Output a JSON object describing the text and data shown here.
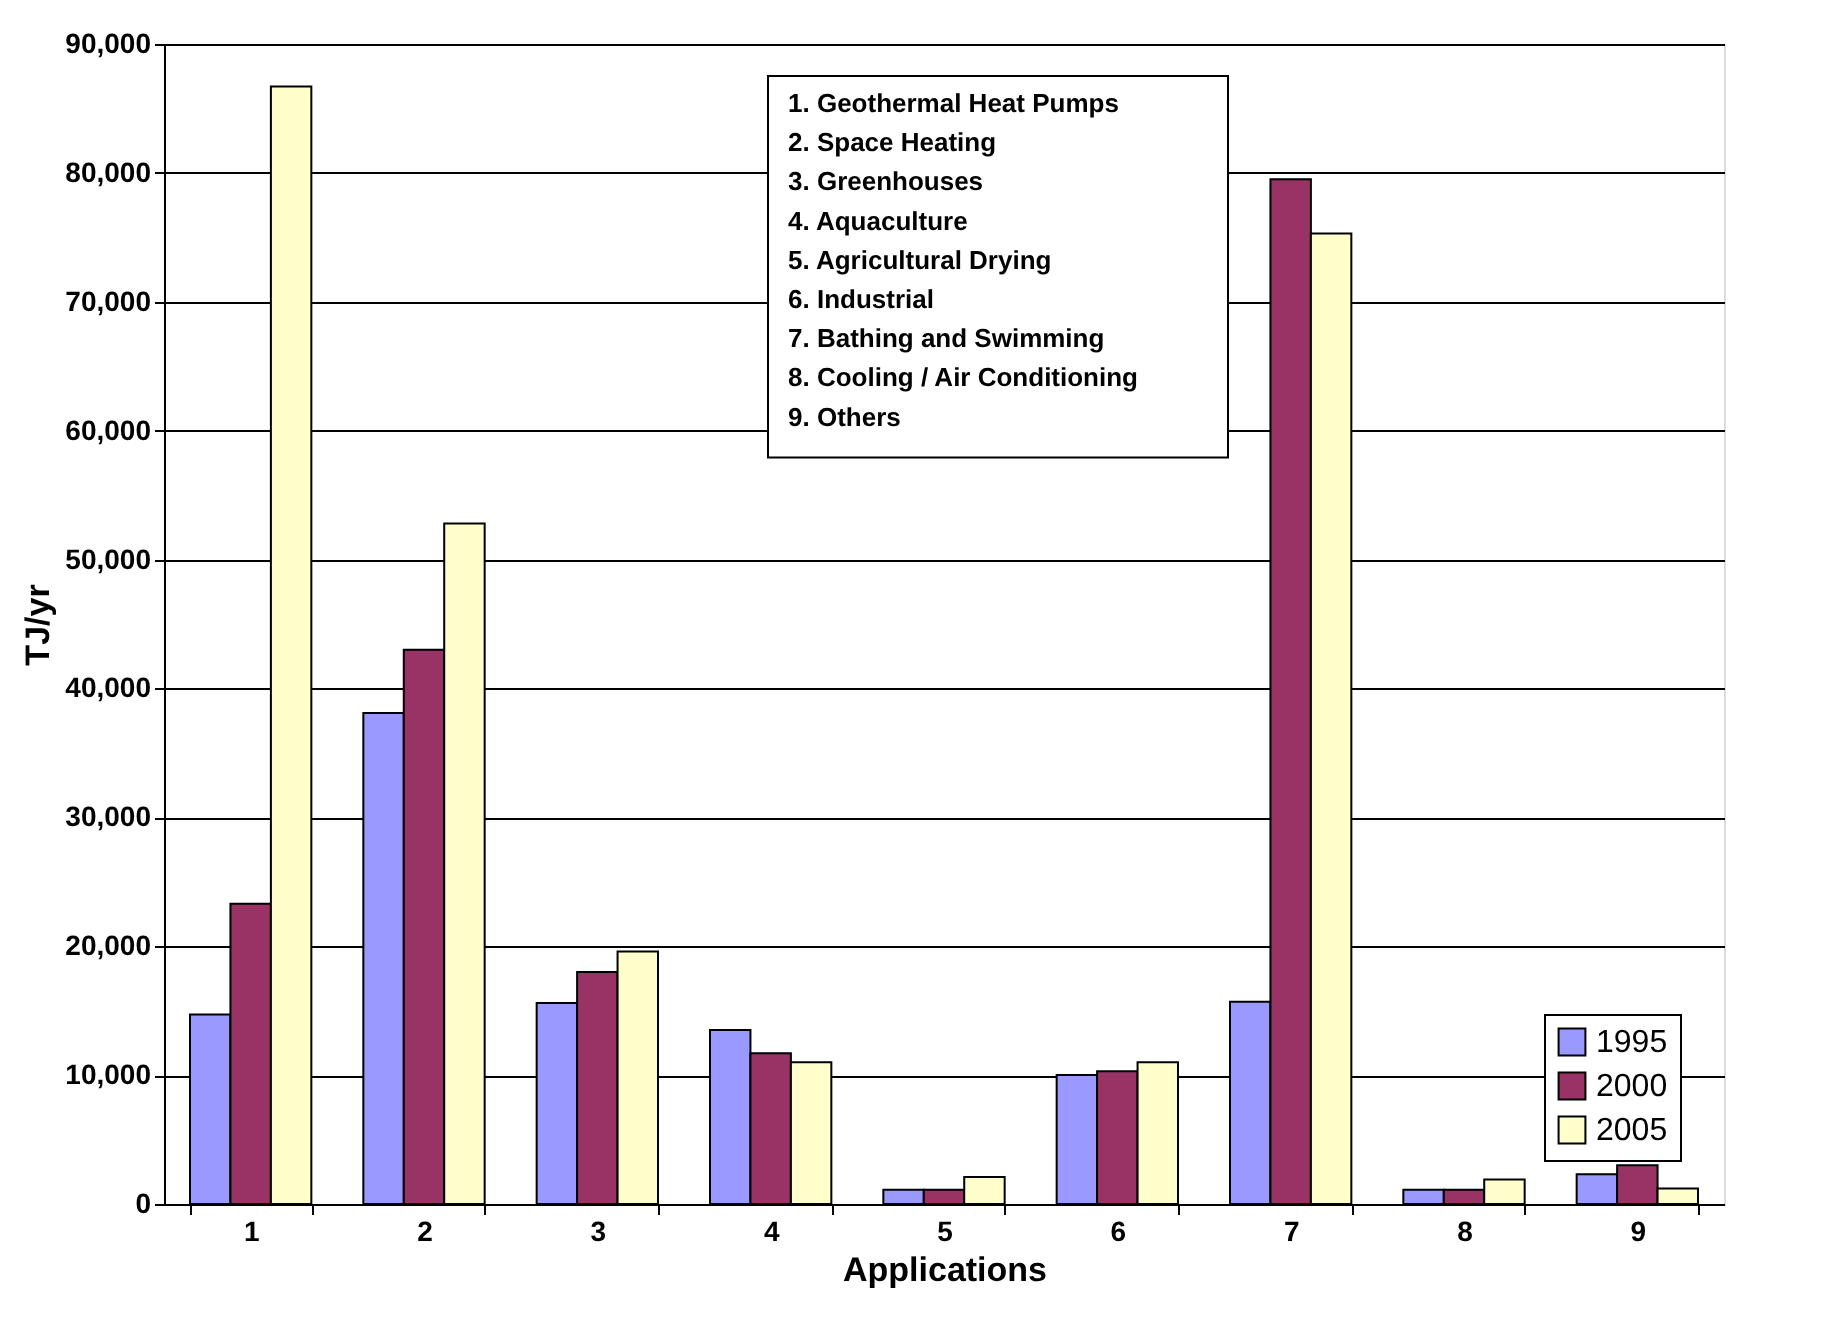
{
  "chart_data": {
    "type": "bar",
    "xlabel": "Applications",
    "ylabel": "TJ/yr",
    "categories": [
      "1",
      "2",
      "3",
      "4",
      "5",
      "6",
      "7",
      "8",
      "9"
    ],
    "series": [
      {
        "name": "1995",
        "color": "#9999ff",
        "values": [
          14700,
          38100,
          15600,
          13500,
          1100,
          10000,
          15700,
          1100,
          2300
        ]
      },
      {
        "name": "2000",
        "color": "#993366",
        "values": [
          23300,
          43000,
          18000,
          11700,
          1100,
          10300,
          79500,
          1100,
          3000
        ]
      },
      {
        "name": "2005",
        "color": "#ffffcc",
        "values": [
          86700,
          52800,
          19600,
          11000,
          2100,
          11000,
          75300,
          1900,
          1200
        ]
      }
    ],
    "ylim": [
      0,
      90000
    ],
    "yticks": [
      0,
      {
        "value": 10000,
        "label": "10,000"
      },
      {
        "value": 20000,
        "label": "20,000"
      },
      {
        "value": 30000,
        "label": "30,000"
      },
      {
        "value": 40000,
        "label": "40,000"
      },
      {
        "value": 50000,
        "label": "50,000"
      },
      {
        "value": 60000,
        "label": "60,000"
      },
      {
        "value": 70000,
        "label": "70,000"
      },
      {
        "value": 80000,
        "label": "80,000"
      },
      {
        "value": 90000,
        "label": "90,000"
      }
    ],
    "grid": "y",
    "legend": "bottom right",
    "annotations": [
      "1.  Geothermal Heat Pumps",
      "2.  Space Heating",
      "3.  Greenhouses",
      "4.  Aquaculture",
      "5.  Agricultural Drying",
      "6.  Industrial",
      "7.  Bathing and Swimming",
      "8.  Cooling / Air Conditioning",
      "9.  Others"
    ]
  }
}
